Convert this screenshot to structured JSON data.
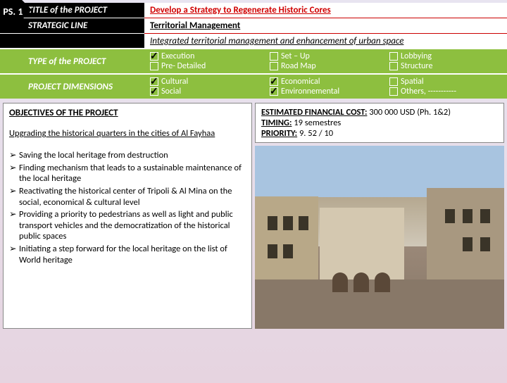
{
  "badge": "PS. 1",
  "header": {
    "title_label": "TITLE of the PROJECT",
    "title_value": "Develop a Strategy to Regenerate Historic Cores",
    "line_label": "STRATEGIC LINE",
    "line_value": "Territorial Management",
    "line_sub": "Integrated territorial management and enhancement of urban space"
  },
  "type_label": "TYPE of the PROJECT",
  "type_options": [
    {
      "label": "Execution",
      "checked": true
    },
    {
      "label": "Pre- Detailed",
      "checked": false
    },
    {
      "label": "Set – Up",
      "checked": false
    },
    {
      "label": "Road Map",
      "checked": false
    },
    {
      "label": "Lobbying",
      "checked": false
    },
    {
      "label": "Structure",
      "checked": false
    }
  ],
  "dim_label": "PROJECT DIMENSIONS",
  "dim_options": [
    {
      "label": "Cultural",
      "checked": true
    },
    {
      "label": "Social",
      "checked": true
    },
    {
      "label": "Economical",
      "checked": true
    },
    {
      "label": "Environnemental",
      "checked": true
    },
    {
      "label": "Spatial",
      "checked": false
    },
    {
      "label": "Others, -----------",
      "checked": false
    }
  ],
  "objectives": {
    "title": "OBJECTIVES OF THE PROJECT",
    "subtitle": "Upgrading the historical quarters in the cities of Al Fayhaa",
    "items": [
      "Saving the local heritage from destruction",
      "Finding mechanism that leads to a sustainable maintenance of the local heritage",
      "Reactivating the historical center of Tripoli & Al Mina on the social, economical & cultural level",
      "Providing a priority to pedestrians as well as light and public transport vehicles and the democratization of the historical public spaces",
      "Initiating a step forward for the local heritage on the list of World heritage"
    ]
  },
  "info": {
    "cost_label": "ESTIMATED FINANCIAL COST:",
    "cost_value": "300 000 USD (Ph. 1&2)",
    "timing_label": "TIMING:",
    "timing_value": "19 semestres",
    "priority_label": "PRIORITY:",
    "priority_value": "9. 52 / 10"
  }
}
